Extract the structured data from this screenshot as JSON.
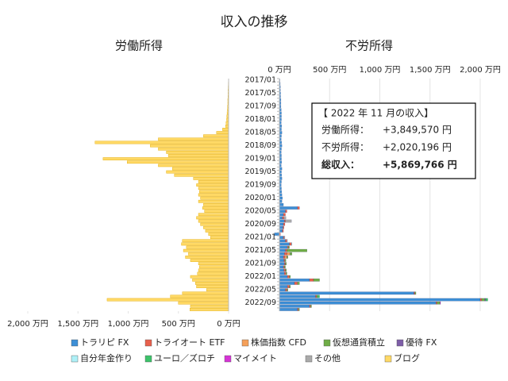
{
  "title": "収入の推移",
  "legend": true,
  "annotation": {
    "heading": "【 2022 年 11 月の収入】",
    "rows": [
      {
        "label": "労働所得：",
        "value": "+3,849,570 円"
      },
      {
        "label": "不労所得：",
        "value": "+2,020,196 円"
      },
      {
        "label": "総収入：",
        "value": "+5,869,766 円"
      }
    ]
  },
  "chart_data": [
    {
      "type": "bar",
      "orientation": "horizontal",
      "xreverse": true,
      "title": "労働所得",
      "xlim": [
        0,
        2000
      ],
      "xticks": [
        {
          "value": 0,
          "label": "0 万円"
        },
        {
          "value": 500,
          "label": "500 万円"
        },
        {
          "value": 1000,
          "label": "1,000 万円"
        },
        {
          "value": 1500,
          "label": "1,500 万円"
        },
        {
          "value": 2000,
          "label": "2,000 万円"
        }
      ],
      "series": [
        {
          "name": "ブログ",
          "color": "#ffd966",
          "values": [
            2,
            3,
            4,
            5,
            5,
            6,
            8,
            8,
            10,
            12,
            15,
            18,
            20,
            25,
            30,
            60,
            120,
            250,
            700,
            1330,
            780,
            700,
            620,
            600,
            1250,
            1010,
            700,
            560,
            620,
            540,
            350,
            300,
            320,
            300,
            290,
            300,
            280,
            300,
            250,
            260,
            240,
            300,
            320,
            300,
            280,
            250,
            230,
            200,
            180,
            460,
            470,
            420,
            450,
            400,
            430,
            380,
            300,
            290,
            300,
            310,
            380,
            360,
            330,
            320,
            220,
            460,
            580,
            1210,
            500,
            380,
            385
          ]
        }
      ]
    },
    {
      "type": "bar",
      "orientation": "horizontal",
      "stacked": true,
      "grid": true,
      "title": "不労所得",
      "xlim": [
        0,
        2000
      ],
      "xticks": [
        {
          "value": 0,
          "label": "0 万円"
        },
        {
          "value": 500,
          "label": "500 万円"
        },
        {
          "value": 1000,
          "label": "1,000 万円"
        },
        {
          "value": 1500,
          "label": "1,500 万円"
        },
        {
          "value": 2000,
          "label": "2,000 万円"
        }
      ],
      "categories": [
        "2017/01",
        null,
        null,
        null,
        "2017/05",
        null,
        null,
        null,
        "2017/09",
        null,
        null,
        null,
        "2018/01",
        null,
        null,
        null,
        "2018/05",
        null,
        null,
        null,
        "2018/09",
        null,
        null,
        null,
        "2019/01",
        null,
        null,
        null,
        "2019/05",
        null,
        null,
        null,
        "2019/09",
        null,
        null,
        null,
        "2020/01",
        null,
        null,
        null,
        "2020/05",
        null,
        null,
        null,
        "2020/09",
        null,
        null,
        null,
        "2021/01",
        null,
        null,
        null,
        "2021/05",
        null,
        null,
        null,
        "2021/09",
        null,
        null,
        null,
        "2022/01",
        null,
        null,
        null,
        "2022/05",
        null,
        null,
        null,
        "2022/09",
        null,
        null
      ],
      "series": [
        {
          "name": "トラリピ FX",
          "color": "#3d8fd6",
          "values": [
            5,
            8,
            10,
            10,
            12,
            12,
            15,
            15,
            15,
            18,
            20,
            20,
            20,
            18,
            22,
            20,
            25,
            20,
            18,
            22,
            25,
            20,
            18,
            20,
            20,
            22,
            18,
            25,
            20,
            22,
            25,
            20,
            18,
            20,
            22,
            25,
            30,
            25,
            40,
            180,
            60,
            40,
            30,
            50,
            40,
            35,
            30,
            -50,
            40,
            60,
            100,
            80,
            60,
            50,
            40,
            45,
            50,
            40,
            45,
            50,
            80,
            300,
            150,
            80,
            60,
            1340,
            360,
            2000,
            1560,
            300,
            180
          ]
        },
        {
          "name": "トライオート ETF",
          "color": "#e8604c",
          "values": [
            0,
            0,
            0,
            0,
            0,
            0,
            0,
            0,
            0,
            0,
            0,
            0,
            0,
            0,
            0,
            0,
            0,
            0,
            0,
            0,
            0,
            0,
            0,
            0,
            0,
            0,
            0,
            0,
            0,
            0,
            0,
            0,
            0,
            0,
            0,
            0,
            0,
            0,
            0,
            20,
            15,
            20,
            15,
            10,
            15,
            10,
            10,
            10,
            10,
            15,
            20,
            10,
            15,
            25,
            15,
            10,
            10,
            10,
            15,
            15,
            20,
            40,
            30,
            20,
            15,
            10,
            10,
            15,
            10,
            10,
            10
          ]
        },
        {
          "name": "株価指数 CFD",
          "color": "#f5a05a",
          "values": [
            0,
            0,
            0,
            0,
            0,
            0,
            0,
            0,
            0,
            0,
            0,
            0,
            0,
            0,
            0,
            0,
            0,
            0,
            0,
            0,
            0,
            0,
            0,
            0,
            0,
            0,
            0,
            0,
            0,
            0,
            0,
            0,
            0,
            0,
            0,
            0,
            0,
            0,
            0,
            0,
            0,
            0,
            0,
            0,
            0,
            0,
            0,
            0,
            0,
            0,
            0,
            0,
            0,
            30,
            20,
            0,
            0,
            0,
            0,
            0,
            0,
            0,
            0,
            0,
            0,
            0,
            0,
            0,
            0,
            0,
            0
          ]
        },
        {
          "name": "仮想通貨積立",
          "color": "#70ad47",
          "values": [
            0,
            0,
            0,
            0,
            0,
            0,
            0,
            0,
            0,
            0,
            0,
            0,
            0,
            0,
            0,
            0,
            0,
            0,
            0,
            0,
            0,
            0,
            0,
            0,
            0,
            0,
            0,
            0,
            0,
            0,
            0,
            0,
            0,
            0,
            0,
            0,
            0,
            0,
            0,
            0,
            0,
            0,
            0,
            0,
            0,
            0,
            0,
            0,
            0,
            0,
            0,
            10,
            200,
            20,
            10,
            10,
            10,
            10,
            10,
            10,
            10,
            60,
            20,
            10,
            10,
            10,
            10,
            30,
            30,
            10,
            10
          ]
        },
        {
          "name": "優待 FX",
          "color": "#7e5ea8",
          "values": [
            0,
            0,
            0,
            0,
            0,
            0,
            0,
            0,
            0,
            0,
            0,
            0,
            0,
            0,
            0,
            0,
            0,
            0,
            0,
            0,
            0,
            0,
            0,
            0,
            0,
            0,
            0,
            0,
            0,
            0,
            0,
            0,
            0,
            0,
            0,
            0,
            0,
            0,
            0,
            0,
            0,
            0,
            0,
            0,
            0,
            0,
            0,
            0,
            0,
            0,
            0,
            0,
            0,
            0,
            0,
            0,
            0,
            0,
            0,
            0,
            0,
            0,
            0,
            0,
            0,
            0,
            0,
            10,
            0,
            0,
            0
          ]
        },
        {
          "name": "自分年金作り",
          "color": "#aef0f7",
          "values": [
            0,
            0,
            0,
            0,
            0,
            0,
            0,
            0,
            0,
            0,
            0,
            0,
            0,
            0,
            0,
            0,
            0,
            0,
            0,
            0,
            0,
            0,
            0,
            0,
            0,
            0,
            0,
            0,
            0,
            0,
            0,
            0,
            0,
            0,
            0,
            0,
            0,
            0,
            0,
            0,
            0,
            0,
            0,
            0,
            0,
            0,
            0,
            0,
            5,
            5,
            5,
            0,
            0,
            0,
            0,
            0,
            0,
            0,
            0,
            0,
            0,
            0,
            0,
            0,
            0,
            0,
            0,
            0,
            0,
            0,
            0
          ]
        },
        {
          "name": "ユーロ／ズロチ",
          "color": "#3cc36a",
          "values": [
            0,
            0,
            0,
            0,
            0,
            0,
            0,
            0,
            0,
            0,
            0,
            0,
            0,
            0,
            0,
            0,
            0,
            0,
            0,
            0,
            0,
            0,
            0,
            0,
            0,
            0,
            0,
            0,
            0,
            0,
            0,
            0,
            0,
            0,
            0,
            0,
            0,
            0,
            0,
            0,
            0,
            0,
            0,
            0,
            0,
            0,
            0,
            0,
            0,
            0,
            0,
            0,
            0,
            0,
            0,
            0,
            0,
            0,
            0,
            0,
            0,
            0,
            0,
            0,
            0,
            0,
            20,
            20,
            0,
            0,
            0
          ]
        },
        {
          "name": "マイメイト",
          "color": "#d633d6",
          "values": [
            0,
            0,
            0,
            0,
            0,
            0,
            0,
            0,
            0,
            0,
            0,
            0,
            0,
            0,
            0,
            0,
            0,
            0,
            0,
            0,
            0,
            0,
            0,
            0,
            0,
            0,
            0,
            0,
            0,
            0,
            0,
            0,
            0,
            0,
            0,
            0,
            0,
            0,
            0,
            0,
            0,
            0,
            0,
            0,
            0,
            0,
            0,
            0,
            0,
            0,
            0,
            0,
            0,
            0,
            0,
            0,
            0,
            0,
            0,
            0,
            0,
            0,
            0,
            0,
            0,
            0,
            0,
            0,
            5,
            0,
            0
          ]
        },
        {
          "name": "その他",
          "color": "#aaaaaa",
          "values": [
            0,
            0,
            0,
            0,
            0,
            0,
            0,
            0,
            0,
            0,
            0,
            0,
            0,
            0,
            0,
            0,
            0,
            0,
            0,
            0,
            0,
            0,
            0,
            0,
            0,
            0,
            0,
            0,
            0,
            0,
            0,
            0,
            0,
            0,
            0,
            0,
            0,
            0,
            0,
            0,
            0,
            0,
            20,
            60,
            0,
            0,
            0,
            0,
            0,
            0,
            0,
            0,
            0,
            0,
            0,
            0,
            0,
            0,
            0,
            0,
            0,
            0,
            0,
            0,
            0,
            0,
            0,
            0,
            0,
            0,
            0
          ]
        }
      ]
    }
  ]
}
